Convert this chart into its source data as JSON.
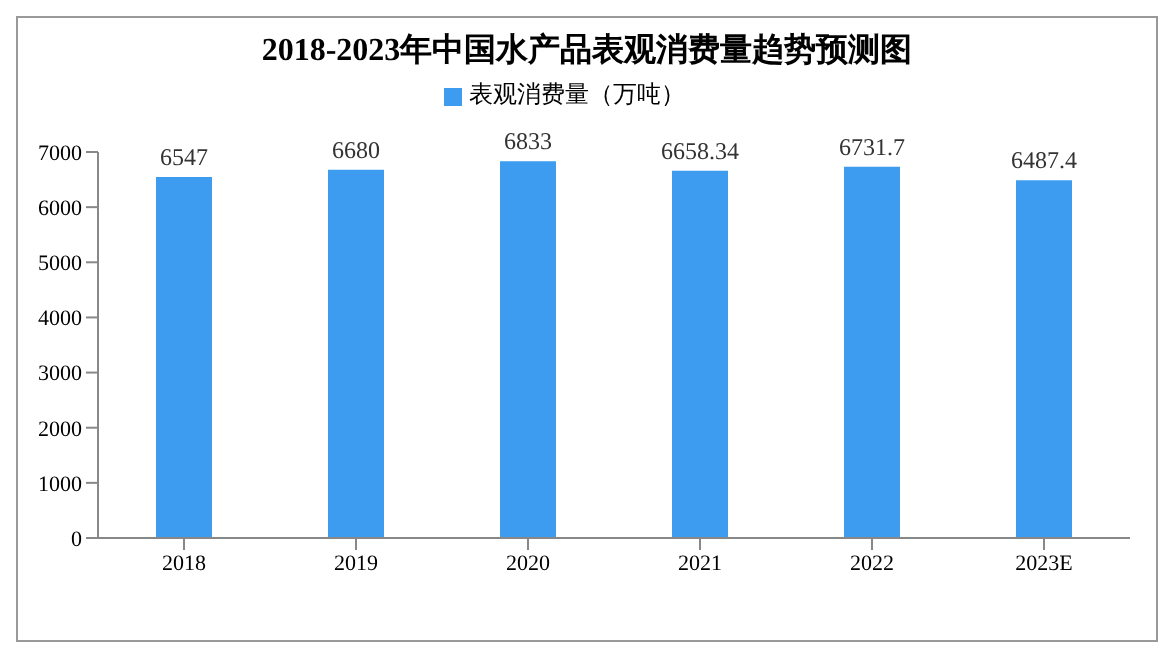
{
  "chart_data": {
    "type": "bar",
    "title": "2018-2023年中国水产品表观消费量趋势预测图",
    "categories": [
      "2018",
      "2019",
      "2020",
      "2021",
      "2022",
      "2023E"
    ],
    "series": [
      {
        "name": "表观消费量（万吨）",
        "color": "#3d9bf0",
        "values": [
          6547,
          6680,
          6833,
          6658.34,
          6731.7,
          6487.4
        ]
      }
    ],
    "ylim": [
      0,
      7000
    ],
    "yticks": [
      0,
      1000,
      2000,
      3000,
      4000,
      5000,
      6000,
      7000
    ],
    "data_labels": true,
    "legend": "top",
    "grid": false
  }
}
